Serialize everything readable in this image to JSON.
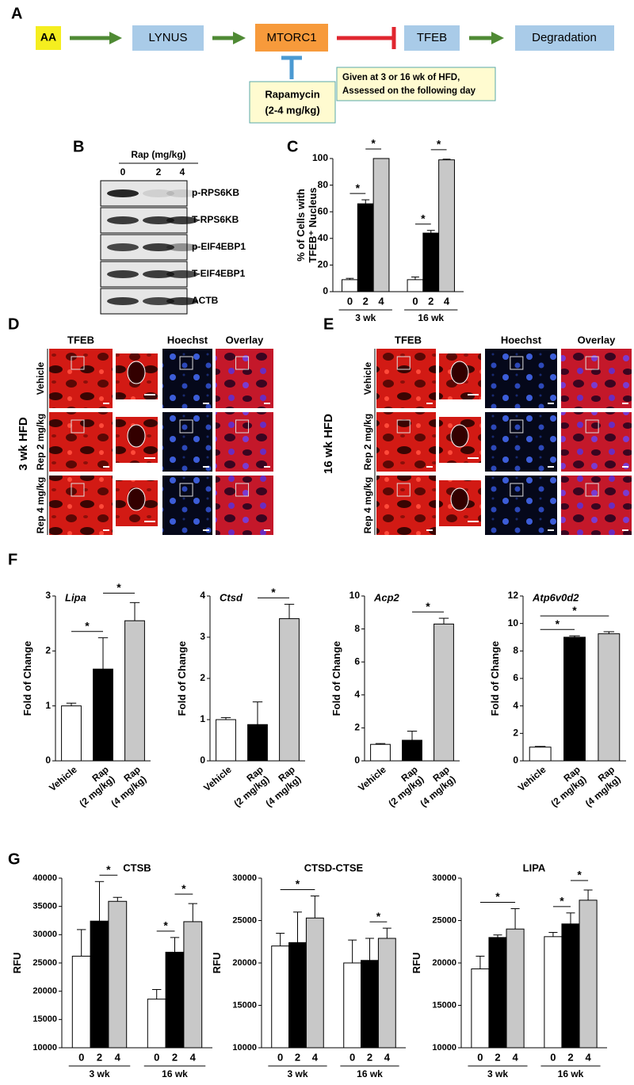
{
  "panels": {
    "A": {
      "label": "A",
      "nodes": [
        "AA",
        "LYNUS",
        "MTORC1",
        "TFEB",
        "Degradation"
      ],
      "inhibitor": [
        "Rapamycin",
        "(2-4 mg/kg)"
      ],
      "note": [
        "Given at 3 or 16 wk of HFD,",
        "Assessed on the following day"
      ]
    },
    "B": {
      "label": "B",
      "header": "Rap (mg/kg)",
      "doses": [
        "0",
        "2",
        "4"
      ],
      "bands": [
        "p-RPS6KB",
        "T-RPS6KB",
        "p-EIF4EBP1",
        "T-EIF4EBP1",
        "ACTB"
      ]
    },
    "C": {
      "label": "C",
      "chart_data": {
        "type": "bar",
        "ylabel": [
          "% of Cells with",
          "TFEB⁺ Nucleus"
        ],
        "doses": [
          "0",
          "2",
          "4"
        ],
        "colors": [
          "#ffffff",
          "#000000",
          "#c8c8c8"
        ],
        "ylim": [
          0,
          100
        ],
        "yticks": [
          0,
          20,
          40,
          60,
          80,
          100
        ],
        "groups": [
          {
            "name": "3 wk",
            "values": [
              9,
              66,
              100
            ],
            "errors": [
              1,
              3,
              0
            ],
            "significance": [
              {
                "bars": [
                  0,
                  1
                ],
                "label": "*"
              },
              {
                "bars": [
                  1,
                  2
                ],
                "label": "*"
              }
            ]
          },
          {
            "name": "16 wk",
            "values": [
              9,
              44,
              99
            ],
            "errors": [
              2,
              2,
              0.5
            ],
            "significance": [
              {
                "bars": [
                  0,
                  1
                ],
                "label": "*"
              },
              {
                "bars": [
                  1,
                  2
                ],
                "label": "*"
              }
            ]
          }
        ]
      }
    },
    "D": {
      "label": "D",
      "side": "3 wk HFD",
      "columns": [
        "TFEB",
        "Hoechst",
        "Overlay"
      ],
      "rows": [
        "Vehicle",
        "Rep 2 mg/kg",
        "Rep 4 mg/kg"
      ]
    },
    "E": {
      "label": "E",
      "side": "16 wk HFD",
      "columns": [
        "TFEB",
        "Hoechst",
        "Overlay"
      ],
      "rows": [
        "Vehicle",
        "Rep 2 mg/kg",
        "Rep 4 mg/kg"
      ]
    },
    "F": {
      "label": "F",
      "charts": [
        {
          "type": "bar",
          "title": "Lipa",
          "title_italic": true,
          "ylabel": [
            "Fold of Change"
          ],
          "categories": [
            [
              "Vehicle"
            ],
            [
              "Rap",
              "(2 mg/kg)"
            ],
            [
              "Rap",
              "(4 mg/kg)"
            ]
          ],
          "colors": [
            "#ffffff",
            "#000000",
            "#c8c8c8"
          ],
          "ylim": [
            0,
            3
          ],
          "yticks": [
            0,
            1,
            2,
            3
          ],
          "values": [
            1.0,
            1.67,
            2.55
          ],
          "errors": [
            0.05,
            0.57,
            0.33
          ],
          "significance": [
            {
              "bars": [
                0,
                1
              ],
              "label": "*"
            },
            {
              "bars": [
                1,
                2
              ],
              "label": "*"
            }
          ]
        },
        {
          "type": "bar",
          "title": "Ctsd",
          "title_italic": true,
          "ylabel": [
            "Fold of Change"
          ],
          "categories": [
            [
              "Vehicle"
            ],
            [
              "Rap",
              "(2 mg/kg)"
            ],
            [
              "Rap",
              "(4 mg/kg)"
            ]
          ],
          "colors": [
            "#ffffff",
            "#000000",
            "#c8c8c8"
          ],
          "ylim": [
            0,
            4
          ],
          "yticks": [
            0,
            1,
            2,
            3,
            4
          ],
          "values": [
            1.0,
            0.88,
            3.45
          ],
          "errors": [
            0.05,
            0.55,
            0.35
          ],
          "significance": [
            {
              "bars": [
                1,
                2
              ],
              "label": "*"
            }
          ]
        },
        {
          "type": "bar",
          "title": "Acp2",
          "title_italic": true,
          "ylabel": [
            "Fold of Change"
          ],
          "categories": [
            [
              "Vehicle"
            ],
            [
              "Rap",
              "(2 mg/kg)"
            ],
            [
              "Rap",
              "(4 mg/kg)"
            ]
          ],
          "colors": [
            "#ffffff",
            "#000000",
            "#c8c8c8"
          ],
          "ylim": [
            0,
            10
          ],
          "yticks": [
            0,
            2,
            4,
            6,
            8,
            10
          ],
          "values": [
            1.0,
            1.25,
            8.3
          ],
          "errors": [
            0.05,
            0.55,
            0.35
          ],
          "significance": [
            {
              "bars": [
                1,
                2
              ],
              "label": "*"
            }
          ]
        },
        {
          "type": "bar",
          "title": "Atp6v0d2",
          "title_italic": true,
          "ylabel": [
            "Fold of Change"
          ],
          "categories": [
            [
              "Vehicle"
            ],
            [
              "Rap",
              "(2 mg/kg)"
            ],
            [
              "Rap",
              "(4 mg/kg)"
            ]
          ],
          "colors": [
            "#ffffff",
            "#000000",
            "#c8c8c8"
          ],
          "ylim": [
            0,
            12
          ],
          "yticks": [
            0,
            2,
            4,
            6,
            8,
            10,
            12
          ],
          "values": [
            1.0,
            9.0,
            9.25
          ],
          "errors": [
            0.05,
            0.1,
            0.15
          ],
          "significance": [
            {
              "bars": [
                0,
                1
              ],
              "label": "*"
            },
            {
              "bars": [
                0,
                2
              ],
              "label": "*"
            }
          ]
        }
      ]
    },
    "G": {
      "label": "G",
      "charts": [
        {
          "type": "bar",
          "title": "CTSB",
          "title_italic": false,
          "ylabel": [
            "RFU"
          ],
          "doses": [
            "0",
            "2",
            "4"
          ],
          "colors": [
            "#ffffff",
            "#000000",
            "#c8c8c8"
          ],
          "ylim": [
            10000,
            40000
          ],
          "yticks": [
            10000,
            15000,
            20000,
            25000,
            30000,
            35000,
            40000
          ],
          "groups": [
            {
              "name": "3 wk",
              "values": [
                26200,
                32400,
                35900
              ],
              "errors": [
                4700,
                7000,
                700
              ],
              "significance": [
                {
                  "bars": [
                    1,
                    2
                  ],
                  "label": "*"
                }
              ]
            },
            {
              "name": "16  wk",
              "values": [
                18600,
                26900,
                32300
              ],
              "errors": [
                1700,
                2600,
                3200
              ],
              "significance": [
                {
                  "bars": [
                    0,
                    1
                  ],
                  "label": "*"
                },
                {
                  "bars": [
                    1,
                    2
                  ],
                  "label": "*"
                }
              ]
            }
          ]
        },
        {
          "type": "bar",
          "title": "CTSD-CTSE",
          "title_italic": false,
          "ylabel": [
            "RFU"
          ],
          "doses": [
            "0",
            "2",
            "4"
          ],
          "colors": [
            "#ffffff",
            "#000000",
            "#c8c8c8"
          ],
          "ylim": [
            10000,
            30000
          ],
          "yticks": [
            10000,
            15000,
            20000,
            25000,
            30000
          ],
          "groups": [
            {
              "name": "3 wk",
              "values": [
                22000,
                22400,
                25300
              ],
              "errors": [
                1500,
                3600,
                2600
              ],
              "significance": [
                {
                  "bars": [
                    0,
                    2
                  ],
                  "label": "*"
                }
              ]
            },
            {
              "name": "16 wk",
              "values": [
                20000,
                20300,
                22900
              ],
              "errors": [
                2700,
                2600,
                1200
              ],
              "significance": [
                {
                  "bars": [
                    1,
                    2
                  ],
                  "label": "*"
                }
              ]
            }
          ]
        },
        {
          "type": "bar",
          "title": "LIPA",
          "title_italic": false,
          "ylabel": [
            "RFU"
          ],
          "doses": [
            "0",
            "2",
            "4"
          ],
          "colors": [
            "#ffffff",
            "#000000",
            "#c8c8c8"
          ],
          "ylim": [
            10000,
            30000
          ],
          "yticks": [
            10000,
            15000,
            20000,
            25000,
            30000
          ],
          "groups": [
            {
              "name": "3 wk",
              "values": [
                19300,
                23000,
                24000
              ],
              "errors": [
                1500,
                300,
                2400
              ],
              "significance": [
                {
                  "bars": [
                    0,
                    2
                  ],
                  "label": "*"
                }
              ]
            },
            {
              "name": "16 wk",
              "values": [
                23100,
                24600,
                27400
              ],
              "errors": [
                500,
                1300,
                1200
              ],
              "significance": [
                {
                  "bars": [
                    0,
                    1
                  ],
                  "label": "*"
                },
                {
                  "bars": [
                    1,
                    2
                  ],
                  "label": "*"
                }
              ]
            }
          ]
        }
      ]
    }
  }
}
